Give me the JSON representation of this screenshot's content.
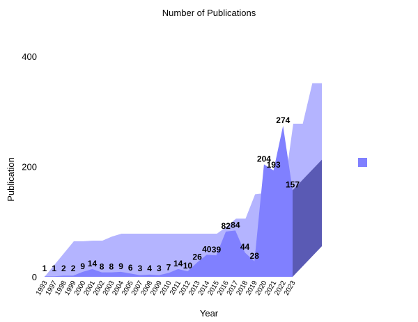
{
  "chart_data": {
    "type": "area",
    "title": "Number of Publications",
    "xlabel": "Year",
    "ylabel": "Publication",
    "ylim": [
      0,
      400
    ],
    "yticks": [
      0,
      200,
      400
    ],
    "categories": [
      "1993",
      "1997",
      "1998",
      "1999",
      "2000",
      "2001",
      "2002",
      "2003",
      "2004",
      "2005",
      "2007",
      "2008",
      "2009",
      "2010",
      "2011",
      "2012",
      "2013",
      "2014",
      "2015",
      "2016",
      "2017",
      "2018",
      "2019",
      "2020",
      "2021",
      "2022",
      "2023"
    ],
    "series": [
      {
        "values": [
          1,
          1,
          2,
          2,
          9,
          14,
          8,
          8,
          9,
          6,
          3,
          4,
          3,
          7,
          14,
          10,
          26,
          40,
          39,
          82,
          84,
          44,
          28,
          204,
          193,
          274,
          157
        ],
        "color": "#8080ff"
      }
    ],
    "data_labels": [
      "1",
      "1",
      "2",
      "2",
      "9",
      "14",
      "8",
      "8",
      "9",
      "6",
      "3",
      "4",
      "3",
      "7",
      "14",
      "10",
      "26",
      "40",
      "39",
      "82",
      "84",
      "44",
      "28",
      "204",
      "193",
      "274",
      "157"
    ],
    "style": "3d-area",
    "grid": false,
    "legend": "right",
    "colors": {
      "front": "#8080ff",
      "back": "#b4b4ff",
      "side": "#5a5ab4"
    }
  }
}
